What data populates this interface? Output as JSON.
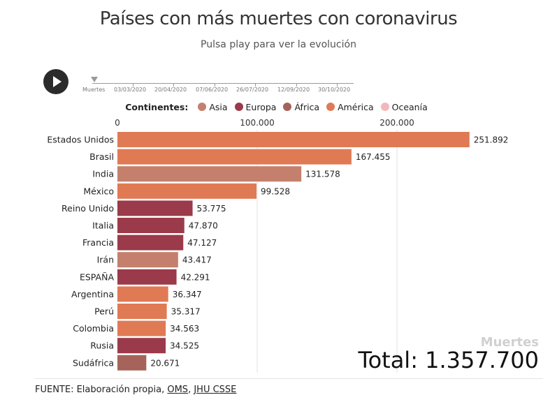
{
  "header": {
    "title": "Países con más muertes con coronavirus",
    "subtitle": "Pulsa play para ver la evolución"
  },
  "controls": {
    "play_icon": "play-icon",
    "timeline_labels": [
      "Muertes",
      "03/03/2020",
      "20/04/2020",
      "07/06/2020",
      "26/07/2020",
      "12/09/2020",
      "30/10/2020"
    ]
  },
  "legend": {
    "heading": "Continentes:",
    "items": [
      {
        "label": "Asia",
        "color": "#c4806c"
      },
      {
        "label": "Europa",
        "color": "#9b3a4a"
      },
      {
        "label": "África",
        "color": "#a5635a"
      },
      {
        "label": "América",
        "color": "#e07a54"
      },
      {
        "label": "Oceanía",
        "color": "#f2b8bc"
      }
    ]
  },
  "chart_data": {
    "type": "bar",
    "orientation": "horizontal",
    "categories": [
      "Estados Unidos",
      "Brasil",
      "India",
      "México",
      "Reino Unido",
      "Italia",
      "Francia",
      "Irán",
      "ESPAÑA",
      "Argentina",
      "Perú",
      "Colombia",
      "Rusia",
      "Sudáfrica"
    ],
    "values": [
      251892,
      167455,
      131578,
      99528,
      53775,
      47870,
      47127,
      43417,
      42291,
      36347,
      35317,
      34563,
      34525,
      20671
    ],
    "value_labels": [
      "251.892",
      "167.455",
      "131.578",
      "99.528",
      "53.775",
      "47.870",
      "47.127",
      "43.417",
      "42.291",
      "36.347",
      "35.317",
      "34.563",
      "34.525",
      "20.671"
    ],
    "continents": [
      "América",
      "América",
      "Asia",
      "América",
      "Europa",
      "Europa",
      "Europa",
      "Asia",
      "Europa",
      "América",
      "América",
      "América",
      "Europa",
      "África"
    ],
    "x_ticks": [
      0,
      100000,
      200000
    ],
    "x_tick_labels": [
      "0",
      "100.000",
      "200.000"
    ],
    "xlim": [
      0,
      255000
    ],
    "grid": true
  },
  "summary": {
    "measure_label": "Muertes",
    "total_text": "Total: 1.357.700"
  },
  "footer": {
    "source_prefix": "FUENTE: Elaboración propia, ",
    "source_link1": "OMS",
    "source_sep": ", ",
    "source_link2": "JHU CSSE"
  }
}
